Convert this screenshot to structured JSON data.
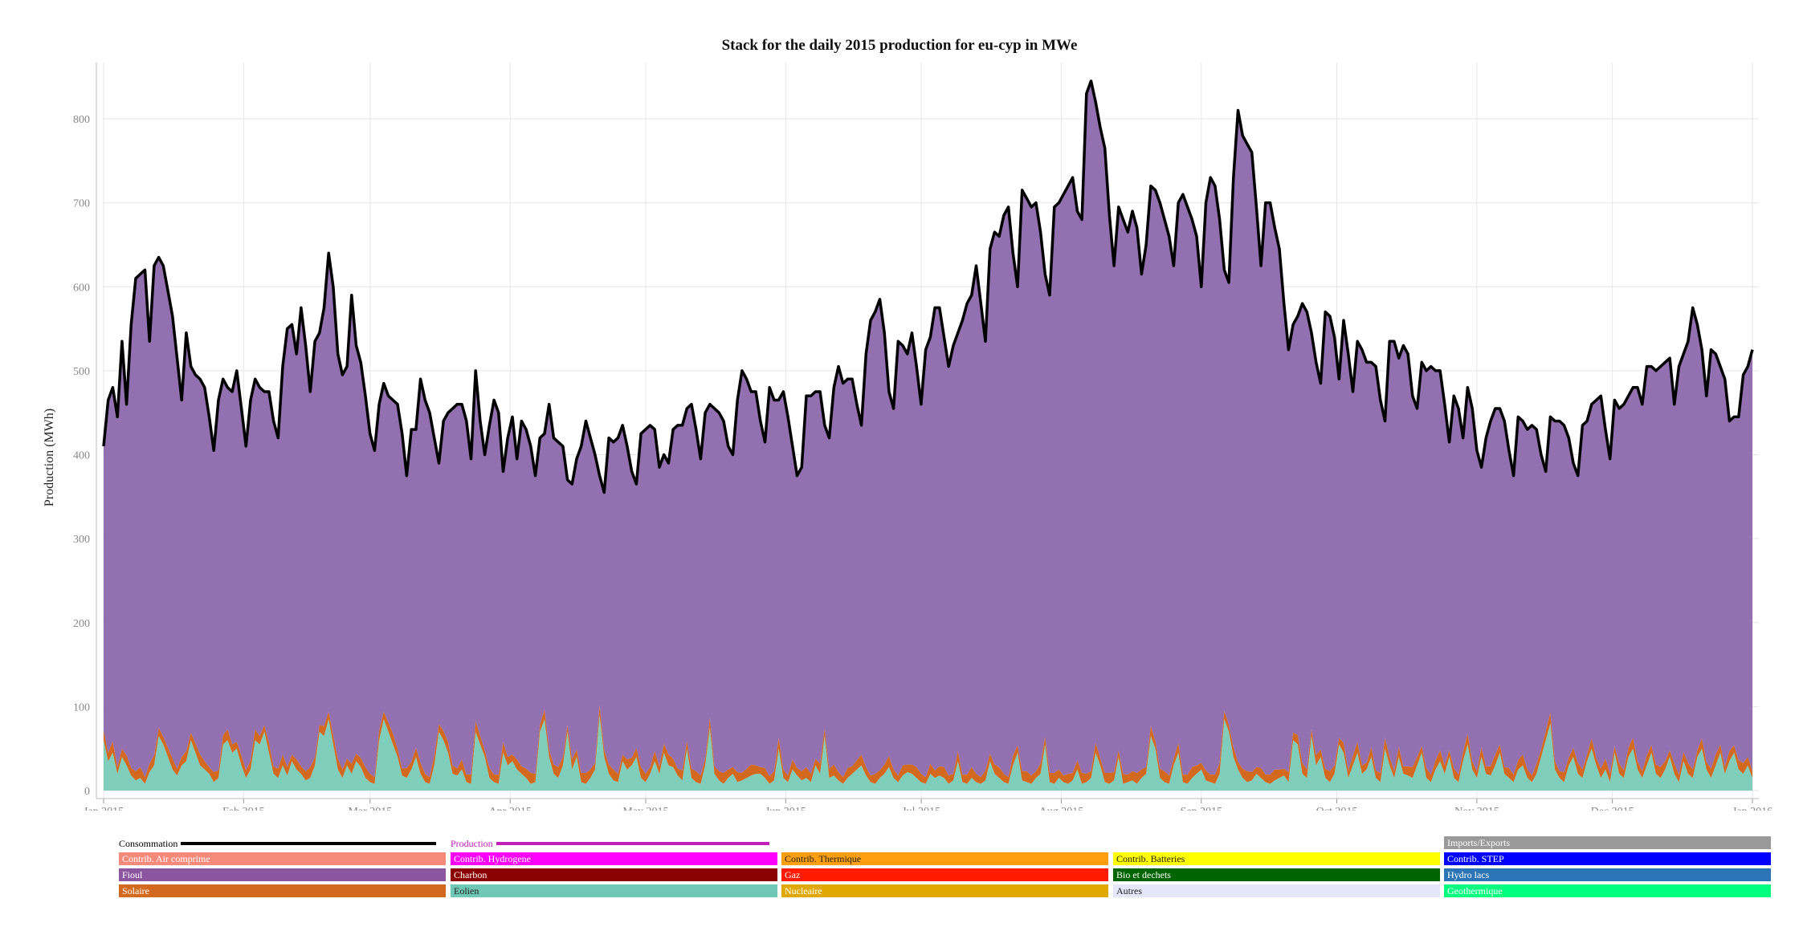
{
  "chart_data": {
    "type": "area",
    "title": "Stack for the daily 2015 production for eu-cyp in MWe",
    "ylabel": "Production (MWh)",
    "xlabel": "",
    "ylim": [
      0,
      870
    ],
    "yticks": [
      0,
      100,
      200,
      300,
      400,
      500,
      600,
      700,
      800
    ],
    "xticks": [
      "Jan 2015",
      "Feb 2015",
      "Mar 2015",
      "Apr 2015",
      "May 2015",
      "Jun 2015",
      "Jul 2015",
      "Aug 2015",
      "Sep 2015",
      "Oct 2015",
      "Nov 2015",
      "Dec 2015",
      "Jan 2016"
    ],
    "grid": true,
    "x_start": "2015-01-01",
    "x_end": "2016-01-01",
    "consommation": [
      410,
      465,
      480,
      445,
      535,
      460,
      555,
      610,
      615,
      620,
      535,
      625,
      635,
      625,
      595,
      565,
      515,
      465,
      545,
      505,
      495,
      490,
      480,
      445,
      405,
      465,
      490,
      480,
      475,
      500,
      455,
      410,
      465,
      490,
      480,
      475,
      475,
      440,
      420,
      505,
      550,
      555,
      520,
      575,
      530,
      475,
      535,
      545,
      575,
      640,
      600,
      520,
      495,
      505,
      590,
      530,
      510,
      470,
      425,
      405,
      460,
      485,
      470,
      465,
      460,
      425,
      375,
      430,
      430,
      490,
      465,
      450,
      420,
      390,
      440,
      450,
      455,
      460,
      460,
      440,
      395,
      500,
      440,
      400,
      435,
      465,
      450,
      380,
      420,
      445,
      395,
      440,
      430,
      410,
      375,
      420,
      425,
      460,
      420,
      415,
      410,
      370,
      365,
      395,
      410,
      440,
      420,
      400,
      375,
      355,
      420,
      415,
      420,
      435,
      410,
      380,
      365,
      425,
      430,
      435,
      430,
      385,
      400,
      390,
      430,
      435,
      435,
      455,
      460,
      430,
      395,
      450,
      460,
      455,
      450,
      440,
      410,
      400,
      465,
      500,
      490,
      475,
      475,
      440,
      415,
      480,
      465,
      465,
      475,
      445,
      410,
      375,
      385,
      470,
      470,
      475,
      475,
      435,
      420,
      480,
      505,
      485,
      490,
      490,
      460,
      435,
      520,
      560,
      570,
      585,
      545,
      475,
      455,
      535,
      530,
      520,
      545,
      505,
      460,
      525,
      540,
      575,
      575,
      540,
      505,
      530,
      545,
      560,
      580,
      590,
      625,
      580,
      535,
      645,
      665,
      660,
      685,
      695,
      640,
      600,
      715,
      705,
      695,
      700,
      665,
      615,
      590,
      695,
      700,
      710,
      720,
      730,
      690,
      680,
      830,
      845,
      820,
      790,
      765,
      685,
      625,
      695,
      680,
      665,
      690,
      670,
      615,
      650,
      720,
      715,
      700,
      680,
      660,
      625,
      700,
      710,
      695,
      680,
      660,
      600,
      700,
      730,
      720,
      680,
      620,
      605,
      730,
      810,
      780,
      770,
      760,
      695,
      625,
      700,
      700,
      670,
      645,
      580,
      525,
      555,
      565,
      580,
      570,
      545,
      510,
      485,
      570,
      565,
      540,
      490,
      560,
      520,
      475,
      535,
      525,
      510,
      510,
      505,
      465,
      440,
      535,
      535,
      515,
      530,
      520,
      470,
      455,
      510,
      500,
      505,
      500,
      500,
      460,
      415,
      470,
      455,
      420,
      480,
      455,
      405,
      385,
      420,
      440,
      455,
      455,
      440,
      405,
      375,
      445,
      440,
      430,
      435,
      430,
      400,
      380,
      445,
      440,
      440,
      435,
      420,
      390,
      375,
      435,
      440,
      460,
      465,
      470,
      430,
      395,
      465,
      455,
      460,
      470,
      480,
      480,
      460,
      505,
      505,
      500,
      505,
      510,
      515,
      460,
      505,
      520,
      535,
      575,
      555,
      525,
      470,
      525,
      520,
      505,
      490,
      440,
      445,
      445,
      495,
      505,
      525
    ],
    "solaire": [
      12,
      10,
      14,
      8,
      10,
      12,
      9,
      11,
      13,
      8,
      10,
      12,
      10,
      9,
      11,
      13,
      8,
      10,
      12,
      9,
      11,
      13,
      10,
      8,
      12,
      9,
      11,
      13,
      10,
      8,
      12,
      9,
      11,
      13,
      10,
      8,
      12,
      9,
      11,
      13,
      10,
      8,
      12,
      9,
      11,
      13,
      10,
      8,
      12,
      9,
      11,
      13,
      10,
      8,
      12,
      9,
      11,
      13,
      10,
      8,
      12,
      9,
      11,
      13,
      10,
      8,
      12,
      9,
      11,
      13,
      10,
      8,
      12,
      9,
      11,
      13,
      10,
      8,
      12,
      9,
      11,
      13,
      10,
      8,
      12,
      9,
      11,
      13,
      10,
      8,
      12,
      9,
      11,
      13,
      10,
      8,
      12,
      9,
      11,
      13,
      10,
      8,
      12,
      9,
      11,
      13,
      10,
      8,
      12,
      9,
      11,
      13,
      10,
      8,
      12,
      9,
      11,
      13,
      10,
      8,
      12,
      9,
      11,
      13,
      10,
      8,
      12,
      9,
      11,
      13,
      10,
      8,
      12,
      9,
      11,
      13,
      10,
      8,
      12,
      9,
      11,
      13,
      10,
      8,
      12,
      9,
      11,
      13,
      10,
      8,
      12,
      9,
      11,
      13,
      10,
      8,
      12,
      9,
      11,
      13,
      10,
      8,
      12,
      9,
      11,
      13,
      10,
      8,
      12,
      9,
      11,
      13,
      10,
      8,
      12,
      9,
      11,
      13,
      10,
      8,
      12,
      9,
      11,
      13,
      10,
      8,
      12,
      9,
      11,
      13,
      10,
      8,
      12,
      9,
      11,
      13,
      10,
      8,
      12,
      9,
      11,
      13,
      10,
      8,
      12,
      9,
      11,
      13,
      10,
      8,
      12,
      9,
      11,
      13,
      10,
      8,
      12,
      9,
      11,
      13,
      10,
      8,
      12,
      9,
      11,
      13,
      10,
      8,
      12,
      9,
      11,
      13,
      10,
      8,
      12,
      9,
      11,
      13,
      10,
      8,
      12,
      9,
      11,
      13,
      10,
      8,
      12,
      9,
      11,
      13,
      10,
      8,
      12,
      9,
      11,
      13,
      10,
      8,
      12,
      9,
      11,
      13,
      10,
      8,
      12,
      9,
      11,
      13,
      10,
      8,
      12,
      9,
      11,
      13,
      10,
      8,
      12,
      9,
      11,
      13,
      10,
      8,
      12,
      9,
      11,
      13,
      10,
      8,
      12,
      9,
      11,
      13,
      10,
      8,
      12,
      9,
      11,
      13,
      10,
      8,
      12,
      9,
      11,
      13,
      10,
      8,
      12,
      9,
      11,
      13,
      10,
      8,
      12,
      9,
      11,
      13,
      10,
      8,
      12,
      9,
      11,
      13,
      10,
      8,
      12,
      9,
      11,
      13,
      10,
      8,
      12,
      9,
      11,
      13,
      10,
      8,
      12,
      9,
      11,
      13,
      10,
      8,
      12,
      9,
      11,
      13,
      10,
      8,
      12,
      9,
      11,
      13,
      10,
      8,
      12,
      9,
      11,
      13,
      10,
      8,
      12,
      9,
      11,
      13,
      10,
      8,
      12,
      9,
      11,
      13,
      10,
      8,
      12
    ],
    "eolien": [
      60,
      35,
      45,
      20,
      40,
      30,
      18,
      12,
      15,
      8,
      22,
      30,
      65,
      55,
      40,
      25,
      18,
      30,
      35,
      60,
      45,
      30,
      25,
      20,
      10,
      15,
      55,
      60,
      45,
      50,
      30,
      15,
      25,
      60,
      55,
      70,
      45,
      20,
      15,
      30,
      18,
      35,
      25,
      20,
      12,
      15,
      30,
      70,
      65,
      85,
      55,
      25,
      15,
      30,
      20,
      35,
      28,
      15,
      10,
      8,
      60,
      85,
      70,
      55,
      40,
      18,
      15,
      25,
      40,
      20,
      10,
      8,
      30,
      70,
      60,
      45,
      20,
      18,
      25,
      10,
      8,
      70,
      55,
      40,
      15,
      10,
      8,
      45,
      30,
      35,
      25,
      20,
      15,
      8,
      10,
      70,
      85,
      40,
      20,
      15,
      30,
      70,
      25,
      40,
      10,
      8,
      15,
      25,
      90,
      40,
      20,
      12,
      10,
      35,
      25,
      30,
      40,
      15,
      10,
      20,
      35,
      20,
      45,
      30,
      28,
      18,
      12,
      50,
      15,
      10,
      8,
      30,
      75,
      20,
      12,
      8,
      15,
      20,
      10,
      12,
      15,
      18,
      20,
      20,
      15,
      8,
      12,
      50,
      15,
      10,
      25,
      18,
      12,
      15,
      10,
      30,
      20,
      65,
      15,
      18,
      12,
      8,
      15,
      20,
      25,
      30,
      18,
      10,
      8,
      15,
      20,
      28,
      15,
      10,
      18,
      22,
      20,
      15,
      10,
      8,
      20,
      15,
      18,
      15,
      8,
      12,
      35,
      10,
      8,
      15,
      10,
      8,
      12,
      35,
      20,
      15,
      10,
      8,
      30,
      45,
      12,
      10,
      8,
      15,
      20,
      55,
      10,
      8,
      15,
      10,
      8,
      12,
      25,
      8,
      10,
      15,
      45,
      30,
      10,
      8,
      12,
      40,
      8,
      10,
      12,
      8,
      15,
      20,
      65,
      50,
      15,
      10,
      8,
      30,
      45,
      10,
      8,
      15,
      20,
      25,
      12,
      10,
      8,
      20,
      85,
      70,
      40,
      25,
      15,
      10,
      12,
      20,
      15,
      10,
      8,
      12,
      15,
      18,
      10,
      60,
      55,
      20,
      15,
      65,
      30,
      40,
      15,
      10,
      20,
      55,
      45,
      15,
      30,
      45,
      20,
      25,
      40,
      15,
      10,
      50,
      30,
      15,
      40,
      20,
      18,
      15,
      30,
      45,
      15,
      10,
      25,
      35,
      20,
      40,
      15,
      10,
      35,
      55,
      25,
      15,
      40,
      20,
      18,
      30,
      45,
      20,
      15,
      10,
      25,
      30,
      15,
      10,
      20,
      40,
      60,
      80,
      25,
      15,
      10,
      30,
      40,
      20,
      15,
      35,
      50,
      30,
      15,
      25,
      10,
      45,
      20,
      15,
      40,
      50,
      25,
      15,
      30,
      45,
      20,
      15,
      25,
      40,
      20,
      10,
      35,
      20,
      15,
      40,
      50,
      25,
      15,
      30,
      45,
      20,
      35,
      45,
      25,
      20,
      30,
      15,
      10,
      40,
      55,
      35,
      20,
      15,
      30,
      25,
      10,
      15,
      20,
      10,
      5,
      8
    ],
    "fioul_color": "#9370b0",
    "colors": {
      "consommation": "#000000",
      "production": "#c31fb8",
      "solaire": "#d2691e",
      "eolien": "#7fcdbb",
      "fioul": "#9370b0"
    }
  },
  "legend": {
    "line_items": [
      {
        "label": "Consommation",
        "color": "#000000"
      },
      {
        "label": "Production",
        "color": "#c31fb8"
      }
    ],
    "imports_exports": {
      "label": "Imports/Exports",
      "color": "#999999"
    },
    "rows": [
      [
        {
          "label": "Contrib. Air comprime",
          "color": "#f58a7a"
        },
        {
          "label": "Contrib. Hydrogene",
          "color": "#ff00ff"
        },
        {
          "label": "Contrib. Thermique",
          "color": "#ff9f0f",
          "text_color": "#222222"
        },
        {
          "label": "Contrib. Batteries",
          "color": "#ffff00",
          "text_color": "#222222"
        },
        {
          "label": "Contrib. STEP",
          "color": "#0000ff"
        }
      ],
      [
        {
          "label": "Fioul",
          "color": "#8b55a0"
        },
        {
          "label": "Charbon",
          "color": "#8b0000"
        },
        {
          "label": "Gaz",
          "color": "#ff1a00"
        },
        {
          "label": "Bio et dechets",
          "color": "#006400"
        },
        {
          "label": "Hydro lacs",
          "color": "#2b74b5"
        }
      ],
      [
        {
          "label": "Solaire",
          "color": "#d2691e"
        },
        {
          "label": "Eolien",
          "color": "#6fc8b5",
          "text_color": "#222222"
        },
        {
          "label": "Nucleaire",
          "color": "#e0a800"
        },
        {
          "label": "Autres",
          "color": "#e6e6fa",
          "text_color": "#222222"
        },
        {
          "label": "Geothermique",
          "color": "#00ff7f"
        }
      ]
    ]
  }
}
